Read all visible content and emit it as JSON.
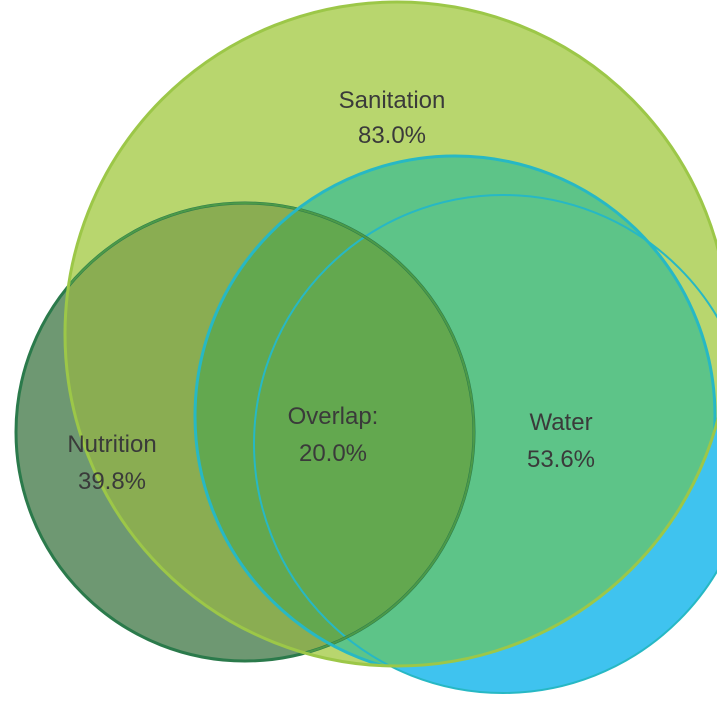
{
  "colors": {
    "background": "#ffffff",
    "sanitation": "#b8d66e",
    "sanitation_stroke": "#9cc748",
    "water_back": "#3fc3ef",
    "water_front": "#5dc488",
    "water_stroke": "#27b8c4",
    "nutrition_left": "#6e9872",
    "nutrition_on_sanitation": "#8aad52",
    "nutrition_stroke": "#2b7a4b",
    "overlap": "#63a84f",
    "overlap_stroke": "#4c9a48",
    "text": "#3a3a3a"
  },
  "sets": [
    {
      "id": "sanitation",
      "name": "Sanitation",
      "value": "83.0%"
    },
    {
      "id": "water",
      "name": "Water",
      "value": "53.6%"
    },
    {
      "id": "nutrition",
      "name": "Nutrition",
      "value": "39.8%"
    }
  ],
  "overlap": {
    "name": "Overlap:",
    "value": "20.0%"
  }
}
